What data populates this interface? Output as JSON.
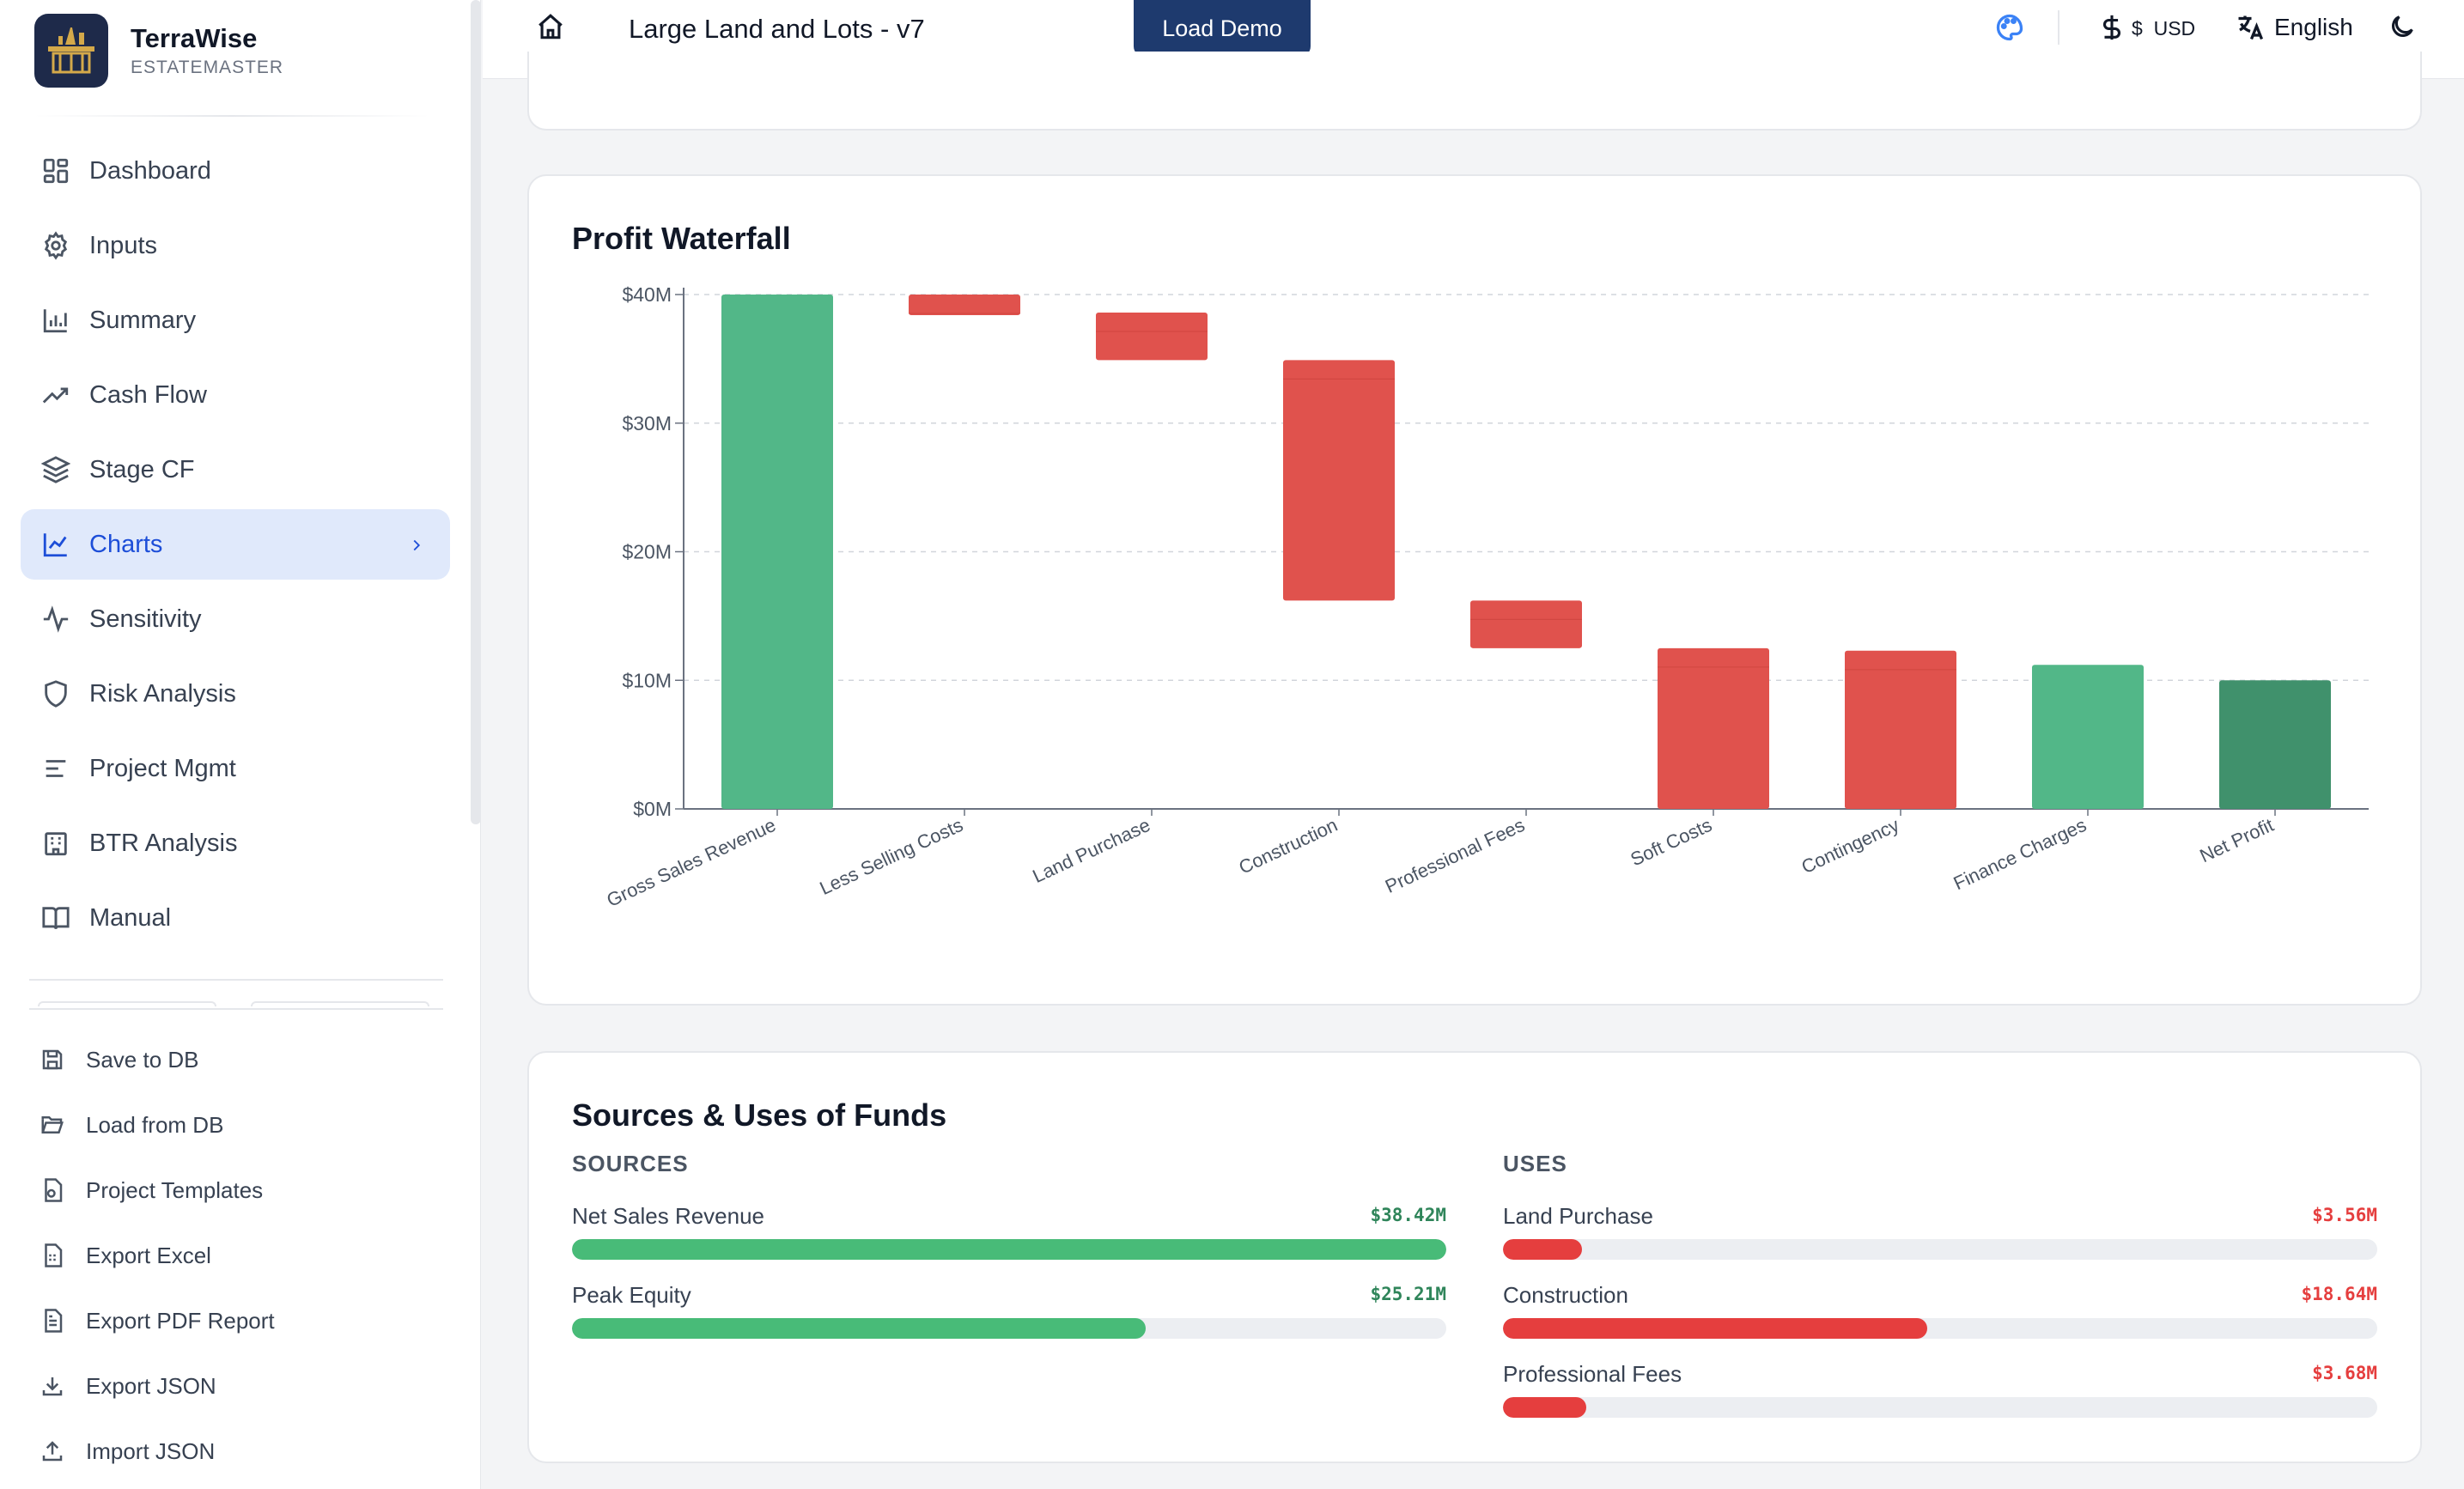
{
  "brand": {
    "name": "TerraWise",
    "sub": "ESTATEMASTER"
  },
  "nav": [
    {
      "label": "Dashboard",
      "icon": "grid-icon"
    },
    {
      "label": "Inputs",
      "icon": "gear-icon"
    },
    {
      "label": "Summary",
      "icon": "bar-chart-icon"
    },
    {
      "label": "Cash Flow",
      "icon": "trend-up-icon"
    },
    {
      "label": "Stage CF",
      "icon": "layers-icon"
    },
    {
      "label": "Charts",
      "icon": "line-chart-icon",
      "active": true
    },
    {
      "label": "Sensitivity",
      "icon": "pulse-icon"
    },
    {
      "label": "Risk Analysis",
      "icon": "shield-icon"
    },
    {
      "label": "Project Mgmt",
      "icon": "list-icon"
    },
    {
      "label": "BTR Analysis",
      "icon": "building-icon"
    },
    {
      "label": "Manual",
      "icon": "book-icon"
    }
  ],
  "actions": [
    {
      "label": "Save to DB",
      "icon": "save-icon"
    },
    {
      "label": "Load from DB",
      "icon": "folder-open-icon"
    },
    {
      "label": "Project Templates",
      "icon": "template-icon"
    },
    {
      "label": "Export Excel",
      "icon": "spreadsheet-icon"
    },
    {
      "label": "Export PDF Report",
      "icon": "file-text-icon"
    },
    {
      "label": "Export JSON",
      "icon": "download-icon"
    },
    {
      "label": "Import JSON",
      "icon": "upload-icon"
    }
  ],
  "header": {
    "project_title": "Large Land and Lots - v7",
    "load_demo": "Load Demo",
    "currency_symbol": "$",
    "currency_code": "USD",
    "language": "English"
  },
  "waterfall": {
    "title": "Profit Waterfall"
  },
  "chart_data": {
    "type": "bar",
    "subtype": "waterfall",
    "title": "Profit Waterfall",
    "categories": [
      "Gross Sales Revenue",
      "Less Selling Costs",
      "Land Purchase",
      "Construction",
      "Professional Fees",
      "Soft Costs",
      "Contingency",
      "Finance Charges",
      "Net Profit"
    ],
    "bars": [
      {
        "base": 0,
        "top": 40.0,
        "kind": "total"
      },
      {
        "base": 38.4,
        "top": 40.0,
        "kind": "decrease"
      },
      {
        "base": 34.9,
        "top": 38.6,
        "kind": "decrease"
      },
      {
        "base": 16.2,
        "top": 34.9,
        "kind": "decrease"
      },
      {
        "base": 12.5,
        "top": 16.2,
        "kind": "decrease"
      },
      {
        "base": 0,
        "top": 12.5,
        "kind": "decrease"
      },
      {
        "base": 0,
        "top": 12.3,
        "kind": "decrease"
      },
      {
        "base": 0,
        "top": 11.2,
        "kind": "increase"
      },
      {
        "base": 0,
        "top": 10.0,
        "kind": "net"
      }
    ],
    "yticks": [
      "$0M",
      "$10M",
      "$20M",
      "$30M",
      "$40M"
    ],
    "ylim": [
      0,
      40
    ],
    "grid": true,
    "colors": {
      "total": "#52b788",
      "decrease": "#e0524d",
      "increase": "#52b788",
      "net": "#40916c"
    }
  },
  "funds": {
    "title": "Sources & Uses of Funds",
    "sources_label": "SOURCES",
    "uses_label": "USES",
    "sources": [
      {
        "label": "Net Sales Revenue",
        "value": "$38.42M",
        "fraction": 1.0
      },
      {
        "label": "Peak Equity",
        "value": "$25.21M",
        "fraction": 0.656
      }
    ],
    "uses": [
      {
        "label": "Land Purchase",
        "value": "$3.56M",
        "fraction": 0.09
      },
      {
        "label": "Construction",
        "value": "$18.64M",
        "fraction": 0.485
      },
      {
        "label": "Professional Fees",
        "value": "$3.68M",
        "fraction": 0.095
      }
    ],
    "source_color": "#48bb78",
    "use_color": "#e53e3e"
  }
}
